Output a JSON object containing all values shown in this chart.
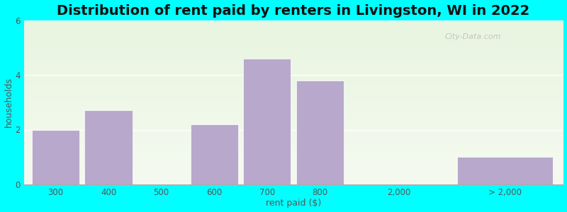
{
  "title": "Distribution of rent paid by renters in Livingston, WI in 2022",
  "xlabel": "rent paid ($)",
  "ylabel": "households",
  "background_color": "#00ffff",
  "bar_color": "#b8a8cc",
  "ylim": [
    0,
    6
  ],
  "yticks": [
    0,
    2,
    4,
    6
  ],
  "bar_heights": [
    2.0,
    2.7,
    0.0,
    2.2,
    4.6,
    3.8,
    0.0,
    1.0
  ],
  "xtick_labels": [
    "300",
    "400",
    "500",
    "600",
    "700",
    "800",
    "2,000",
    "> 2,000"
  ],
  "watermark": "City-Data.com",
  "title_fontsize": 14,
  "axis_label_fontsize": 9,
  "tick_fontsize": 8.5
}
